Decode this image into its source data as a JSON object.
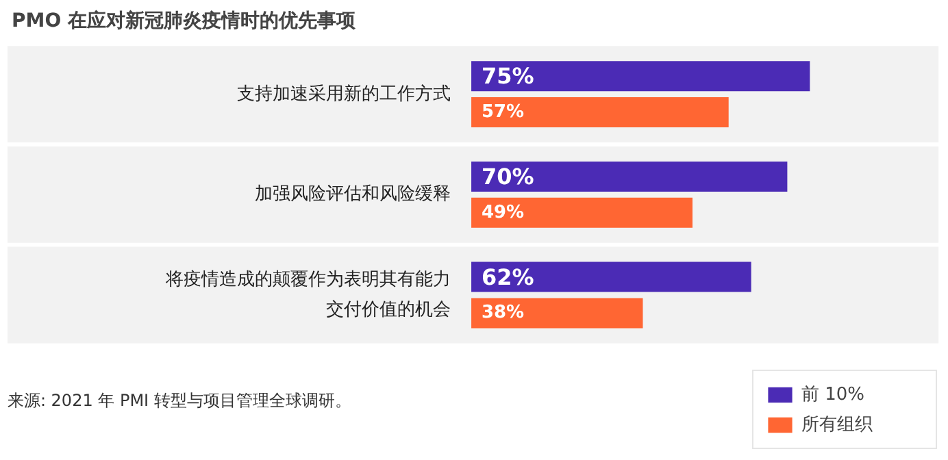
{
  "chart_data": {
    "type": "bar",
    "orientation": "horizontal",
    "title": "PMO 在应对新冠肺炎疫情时的优先事项",
    "categories": [
      "支持加速采用新的工作方式",
      "加强风险评估和风险缓释",
      "将疫情造成的颠覆作为表明其有能力交付价值的机会"
    ],
    "series": [
      {
        "name": "前 10%",
        "color": "#4b2bb5",
        "values": [
          75,
          70,
          62
        ],
        "value_labels": [
          "75%",
          "70%",
          "62%"
        ]
      },
      {
        "name": "所有组织",
        "color": "#ff6633",
        "values": [
          57,
          49,
          38
        ],
        "value_labels": [
          "57%",
          "49%",
          "38%"
        ]
      }
    ],
    "legend": "bottom right",
    "grid": false,
    "annotations": [
      "来源: 2021 年 PMI 转型与项目管理全球调研。"
    ]
  }
}
